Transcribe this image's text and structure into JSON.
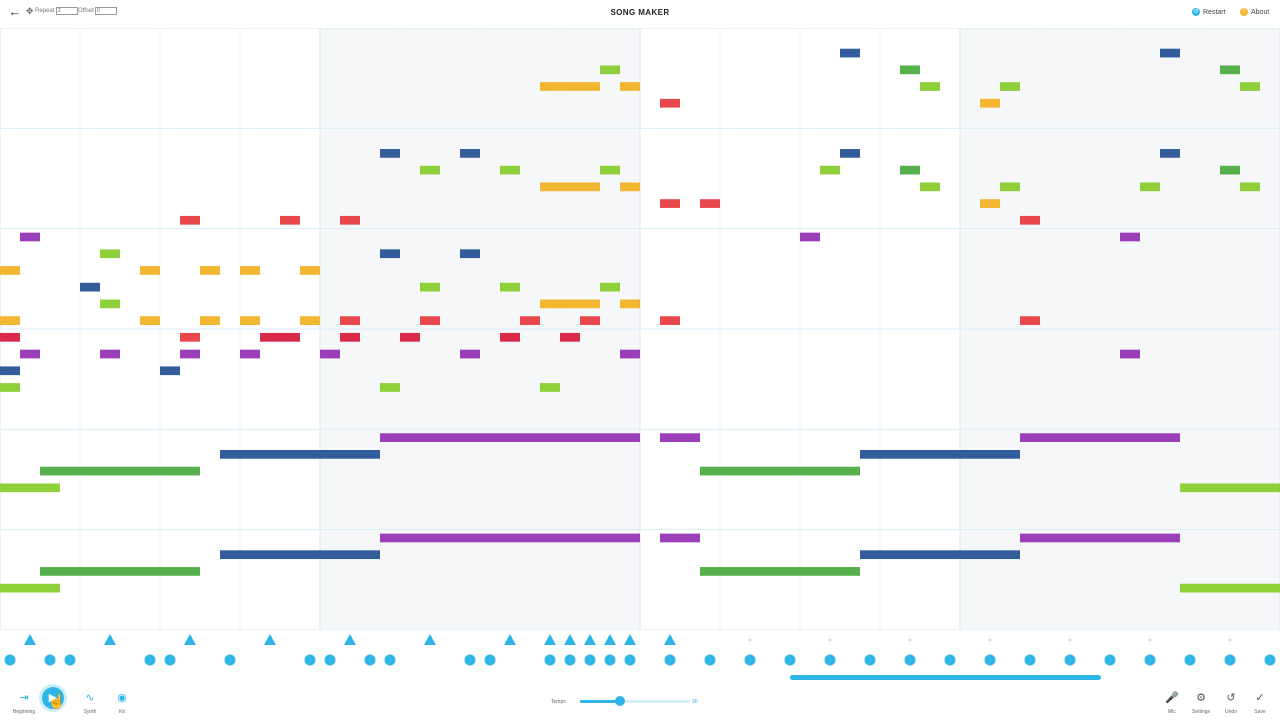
{
  "header": {
    "title": "SONG MAKER",
    "repeat_label": "Repeat",
    "repeat_value": "2",
    "offset_label": "Offset",
    "offset_value": "0",
    "restart_label": "Restart",
    "about_label": "About"
  },
  "toolbar": {
    "beginning_label": "Beginning",
    "synth_label": "Synth",
    "kit_label": "Kit",
    "tempo_label": "Tempo",
    "tempo_value": "90",
    "tempo_fraction": 0.36,
    "mic_label": "Mic",
    "settings_label": "Settings",
    "undo_label": "Undo",
    "save_label": "Save"
  },
  "colors": {
    "red": "#e8474c",
    "orange": "#f2b630",
    "lightgreen": "#8fcf3a",
    "green": "#58b04c",
    "blue": "#335c9a",
    "purple": "#9b3fb8",
    "crimson": "#d92a4a",
    "accent": "#2fb6e8"
  },
  "grid": {
    "columns": 64,
    "rows": 36,
    "notes": [
      [
        0,
        14,
        1,
        "orange"
      ],
      [
        0,
        17,
        1,
        "orange"
      ],
      [
        0,
        18,
        1,
        "crimson"
      ],
      [
        0,
        20,
        1,
        "blue"
      ],
      [
        0,
        21,
        1,
        "lightgreen"
      ],
      [
        0,
        27,
        3,
        "lightgreen"
      ],
      [
        0,
        33,
        3,
        "lightgreen"
      ],
      [
        1,
        12,
        1,
        "purple"
      ],
      [
        1,
        19,
        1,
        "purple"
      ],
      [
        2,
        26,
        8,
        "green"
      ],
      [
        2,
        32,
        8,
        "green"
      ],
      [
        4,
        15,
        1,
        "blue"
      ],
      [
        5,
        13,
        1,
        "lightgreen"
      ],
      [
        5,
        16,
        1,
        "lightgreen"
      ],
      [
        5,
        19,
        1,
        "purple"
      ],
      [
        7,
        14,
        1,
        "orange"
      ],
      [
        7,
        17,
        1,
        "orange"
      ],
      [
        8,
        20,
        1,
        "blue"
      ],
      [
        9,
        11,
        1,
        "red"
      ],
      [
        9,
        18,
        1,
        "red"
      ],
      [
        9,
        19,
        1,
        "purple"
      ],
      [
        10,
        14,
        1,
        "orange"
      ],
      [
        10,
        17,
        1,
        "orange"
      ],
      [
        11,
        25,
        8,
        "blue"
      ],
      [
        11,
        31,
        8,
        "blue"
      ],
      [
        12,
        14,
        1,
        "orange"
      ],
      [
        12,
        17,
        1,
        "orange"
      ],
      [
        12,
        19,
        1,
        "purple"
      ],
      [
        13,
        18,
        2,
        "crimson"
      ],
      [
        14,
        11,
        1,
        "red"
      ],
      [
        15,
        14,
        1,
        "orange"
      ],
      [
        15,
        17,
        1,
        "orange"
      ],
      [
        16,
        19,
        1,
        "purple"
      ],
      [
        17,
        11,
        1,
        "red"
      ],
      [
        17,
        17,
        1,
        "red"
      ],
      [
        17,
        18,
        1,
        "crimson"
      ],
      [
        19,
        7,
        1,
        "blue"
      ],
      [
        19,
        13,
        1,
        "blue"
      ],
      [
        19,
        21,
        1,
        "lightgreen"
      ],
      [
        19,
        24,
        13,
        "purple"
      ],
      [
        19,
        30,
        13,
        "purple"
      ],
      [
        20,
        18,
        1,
        "crimson"
      ],
      [
        21,
        8,
        1,
        "lightgreen"
      ],
      [
        21,
        15,
        1,
        "lightgreen"
      ],
      [
        21,
        17,
        1,
        "red"
      ],
      [
        23,
        7,
        1,
        "blue"
      ],
      [
        23,
        13,
        1,
        "blue"
      ],
      [
        23,
        19,
        1,
        "purple"
      ],
      [
        25,
        8,
        1,
        "lightgreen"
      ],
      [
        25,
        15,
        1,
        "lightgreen"
      ],
      [
        25,
        18,
        1,
        "crimson"
      ],
      [
        26,
        17,
        1,
        "red"
      ],
      [
        27,
        3,
        3,
        "orange"
      ],
      [
        27,
        9,
        3,
        "orange"
      ],
      [
        27,
        16,
        3,
        "orange"
      ],
      [
        27,
        21,
        1,
        "lightgreen"
      ],
      [
        28,
        18,
        1,
        "crimson"
      ],
      [
        29,
        17,
        1,
        "red"
      ],
      [
        30,
        2,
        1,
        "lightgreen"
      ],
      [
        30,
        8,
        1,
        "lightgreen"
      ],
      [
        30,
        15,
        1,
        "lightgreen"
      ],
      [
        31,
        3,
        1,
        "orange"
      ],
      [
        31,
        9,
        1,
        "orange"
      ],
      [
        31,
        16,
        1,
        "orange"
      ],
      [
        31,
        19,
        1,
        "purple"
      ],
      [
        33,
        4,
        1,
        "red"
      ],
      [
        33,
        10,
        1,
        "red"
      ],
      [
        33,
        17,
        1,
        "red"
      ],
      [
        33,
        24,
        2,
        "purple"
      ],
      [
        33,
        30,
        2,
        "purple"
      ],
      [
        35,
        10,
        1,
        "red"
      ],
      [
        35,
        26,
        8,
        "green"
      ],
      [
        35,
        32,
        8,
        "green"
      ],
      [
        40,
        12,
        1,
        "purple"
      ],
      [
        41,
        8,
        1,
        "lightgreen"
      ],
      [
        42,
        1,
        1,
        "blue"
      ],
      [
        42,
        7,
        1,
        "blue"
      ],
      [
        43,
        25,
        8,
        "blue"
      ],
      [
        43,
        31,
        8,
        "blue"
      ],
      [
        45,
        2,
        1,
        "green"
      ],
      [
        45,
        8,
        1,
        "green"
      ],
      [
        46,
        3,
        1,
        "lightgreen"
      ],
      [
        46,
        9,
        1,
        "lightgreen"
      ],
      [
        49,
        4,
        1,
        "orange"
      ],
      [
        49,
        10,
        1,
        "orange"
      ],
      [
        50,
        3,
        1,
        "lightgreen"
      ],
      [
        50,
        9,
        1,
        "lightgreen"
      ],
      [
        51,
        11,
        1,
        "red"
      ],
      [
        51,
        17,
        1,
        "red"
      ],
      [
        51,
        24,
        8,
        "purple"
      ],
      [
        51,
        30,
        8,
        "purple"
      ],
      [
        56,
        12,
        1,
        "purple"
      ],
      [
        56,
        19,
        1,
        "purple"
      ],
      [
        57,
        9,
        1,
        "lightgreen"
      ],
      [
        58,
        1,
        1,
        "blue"
      ],
      [
        58,
        7,
        1,
        "blue"
      ],
      [
        59,
        27,
        5,
        "lightgreen"
      ],
      [
        59,
        33,
        5,
        "lightgreen"
      ],
      [
        61,
        2,
        1,
        "green"
      ],
      [
        61,
        8,
        1,
        "green"
      ],
      [
        62,
        3,
        1,
        "lightgreen"
      ],
      [
        62,
        9,
        1,
        "lightgreen"
      ]
    ]
  },
  "rhythm": {
    "triangles": [
      1,
      5,
      9,
      13,
      17,
      21,
      25,
      27,
      28,
      29,
      30,
      31,
      33
    ],
    "circles": [
      0,
      2,
      3,
      7,
      8,
      11,
      15,
      16,
      18,
      19,
      23,
      24,
      27,
      28,
      29,
      30,
      31,
      33,
      35,
      37,
      39,
      41,
      43,
      45,
      47,
      49,
      51,
      53,
      55,
      57,
      59,
      61,
      63
    ]
  }
}
